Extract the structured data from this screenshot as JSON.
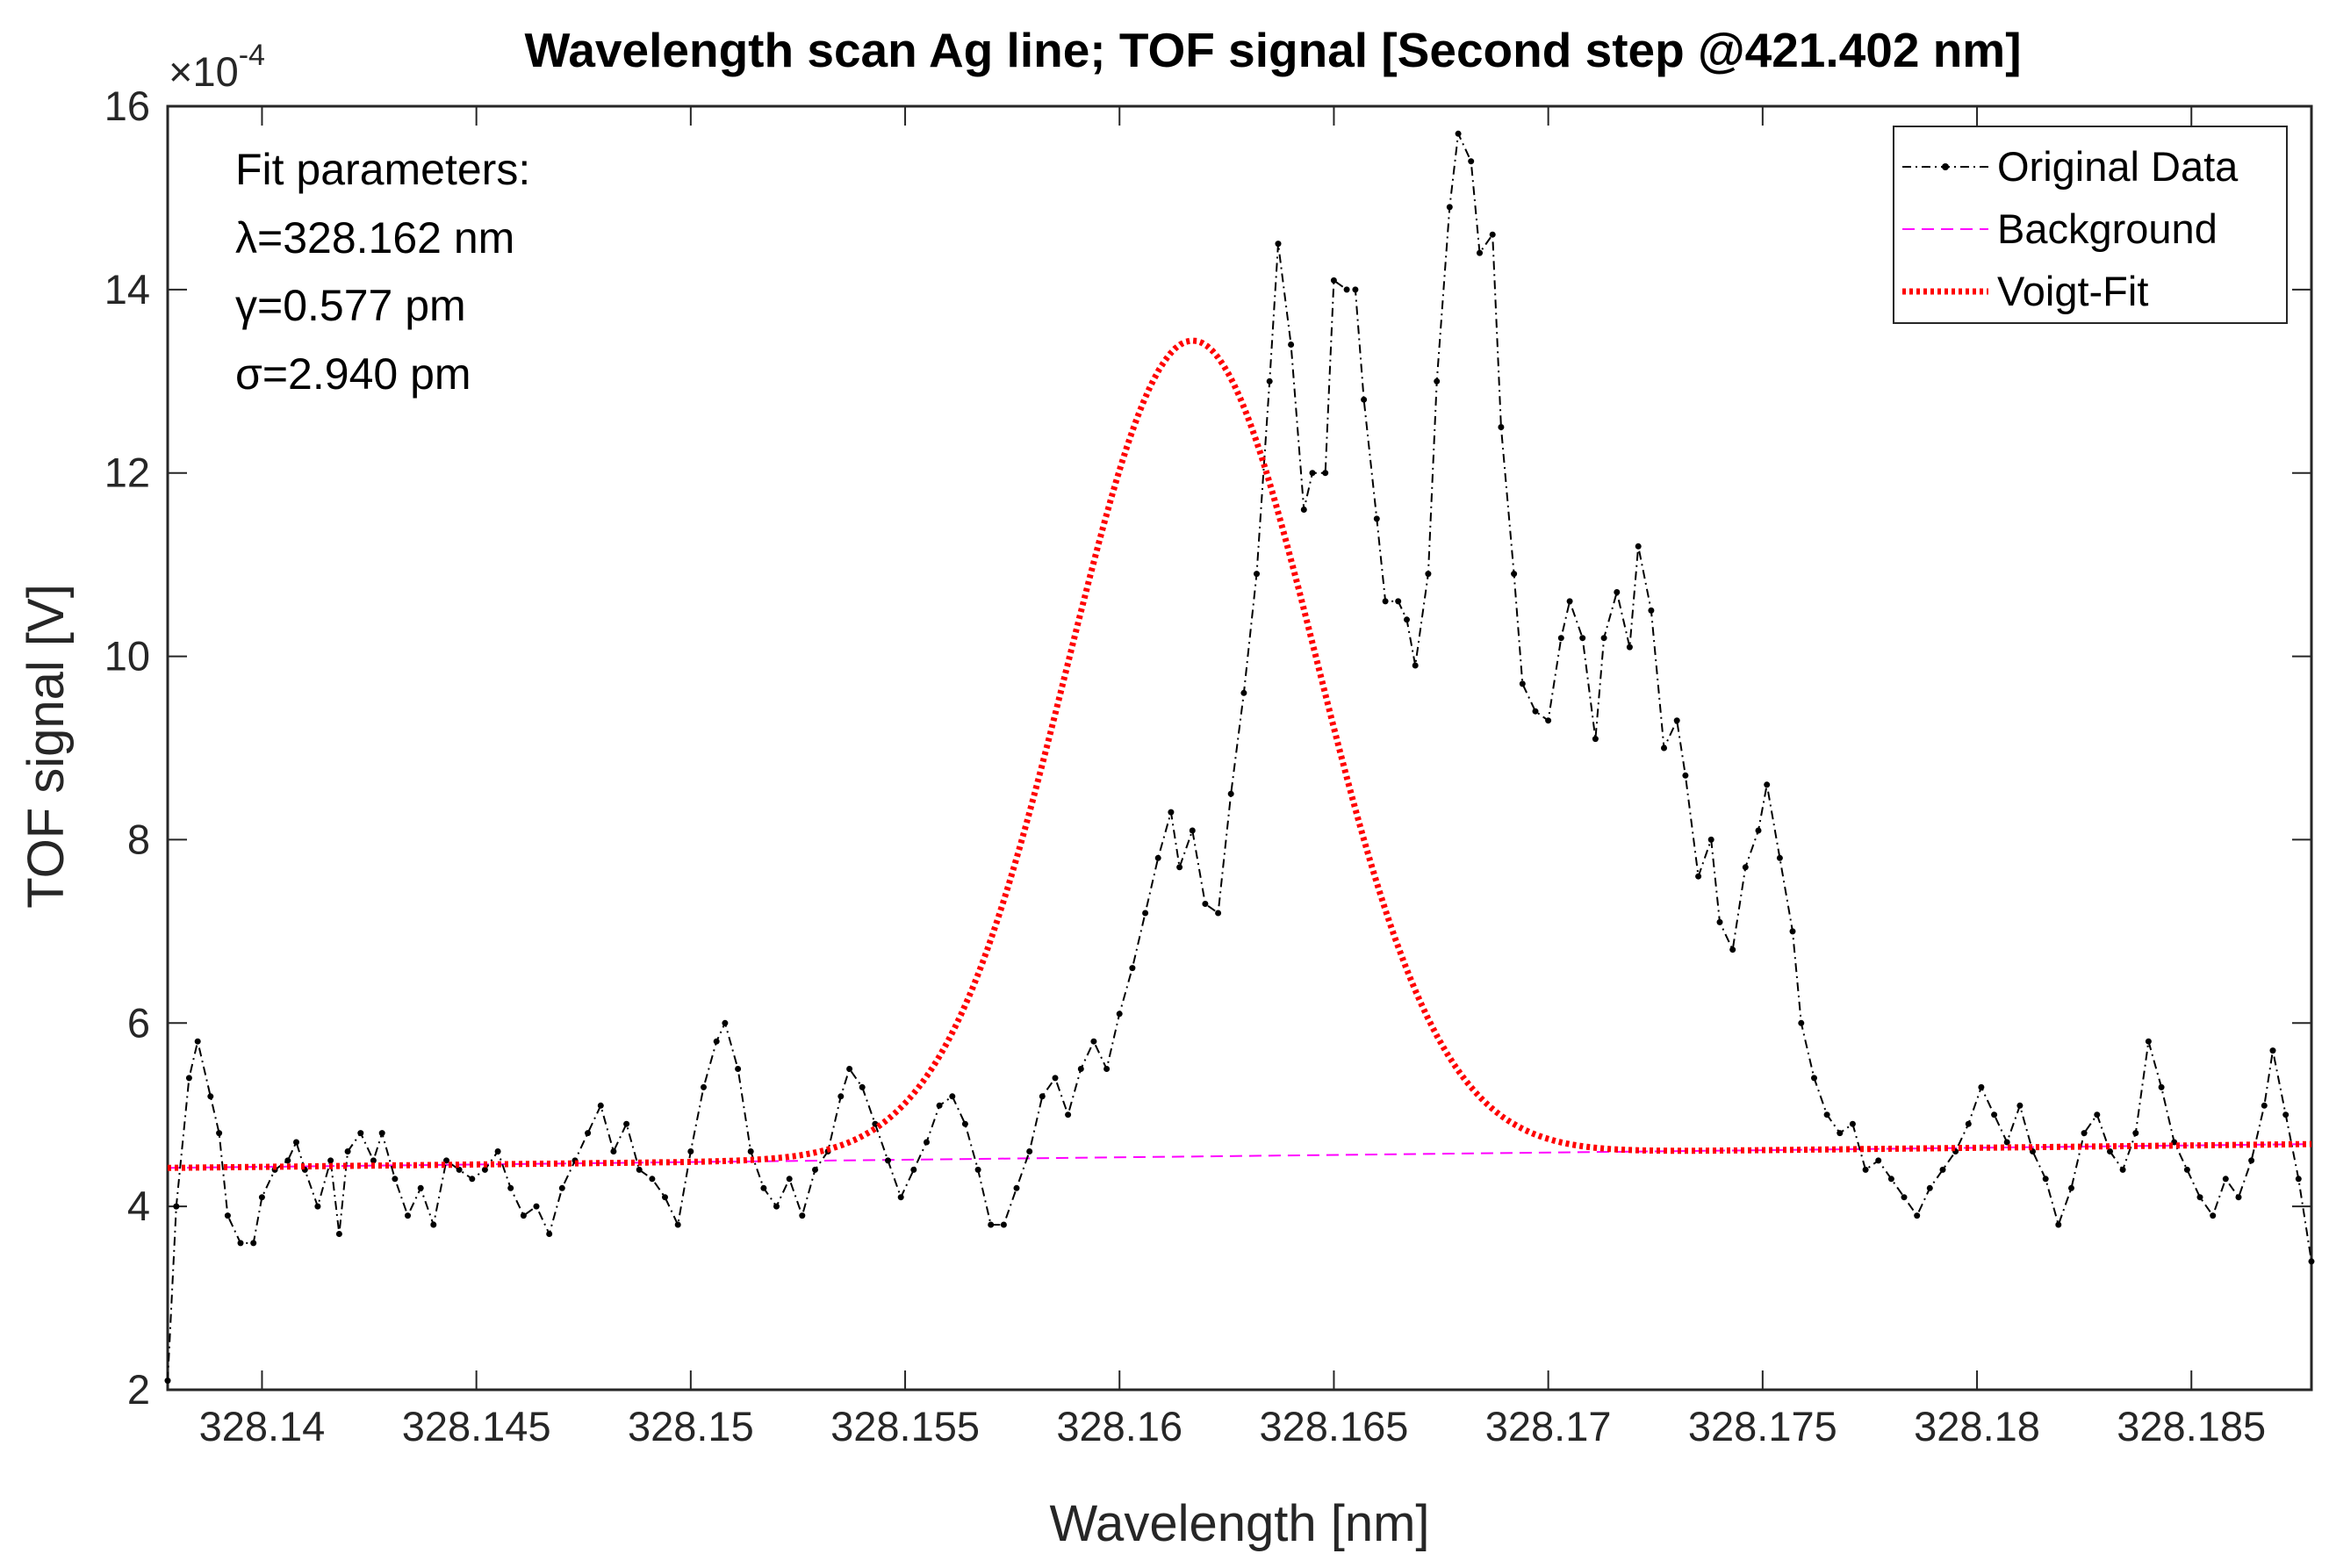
{
  "chart_data": {
    "type": "line",
    "title": "Wavelength scan Ag line; TOF signal [Second step @421.402 nm]",
    "xlabel": "Wavelength [nm]",
    "ylabel": "TOF signal [V]",
    "y_exponent_prefix": "×10",
    "y_exponent_power": "-4",
    "xlim": [
      328.1378,
      328.1878
    ],
    "ylim": [
      2,
      16
    ],
    "xticks": [
      328.14,
      328.145,
      328.15,
      328.155,
      328.16,
      328.165,
      328.17,
      328.175,
      328.18,
      328.185
    ],
    "xtick_labels": [
      "328.14",
      "328.145",
      "328.15",
      "328.155",
      "328.16",
      "328.165",
      "328.17",
      "328.175",
      "328.18",
      "328.185"
    ],
    "yticks": [
      2,
      4,
      6,
      8,
      10,
      12,
      14,
      16
    ],
    "ytick_labels": [
      "2",
      "4",
      "6",
      "8",
      "10",
      "12",
      "14",
      "16"
    ],
    "grid": false,
    "legend_position": "top-right",
    "annotation": {
      "heading": "Fit parameters:",
      "lambda": "λ=328.162 nm",
      "gamma": "γ=0.577 pm",
      "sigma": "σ=2.940 pm"
    },
    "series": [
      {
        "name": "Original Data",
        "style": "dash-dot with point markers",
        "color": "#000000",
        "points": [
          [
            328.1378,
            2.1
          ],
          [
            328.138,
            4.0
          ],
          [
            328.1383,
            5.4
          ],
          [
            328.1385,
            5.8
          ],
          [
            328.1388,
            5.2
          ],
          [
            328.139,
            4.8
          ],
          [
            328.1392,
            3.9
          ],
          [
            328.1395,
            3.6
          ],
          [
            328.1398,
            3.6
          ],
          [
            328.14,
            4.1
          ],
          [
            328.1403,
            4.4
          ],
          [
            328.1406,
            4.5
          ],
          [
            328.1408,
            4.7
          ],
          [
            328.141,
            4.4
          ],
          [
            328.1413,
            4.0
          ],
          [
            328.1416,
            4.5
          ],
          [
            328.1418,
            3.7
          ],
          [
            328.142,
            4.6
          ],
          [
            328.1423,
            4.8
          ],
          [
            328.1426,
            4.5
          ],
          [
            328.1428,
            4.8
          ],
          [
            328.1431,
            4.3
          ],
          [
            328.1434,
            3.9
          ],
          [
            328.1437,
            4.2
          ],
          [
            328.144,
            3.8
          ],
          [
            328.1443,
            4.5
          ],
          [
            328.1446,
            4.4
          ],
          [
            328.1449,
            4.3
          ],
          [
            328.1452,
            4.4
          ],
          [
            328.1455,
            4.6
          ],
          [
            328.1458,
            4.2
          ],
          [
            328.1461,
            3.9
          ],
          [
            328.1464,
            4.0
          ],
          [
            328.1467,
            3.7
          ],
          [
            328.147,
            4.2
          ],
          [
            328.1473,
            4.5
          ],
          [
            328.1476,
            4.8
          ],
          [
            328.1479,
            5.1
          ],
          [
            328.1482,
            4.6
          ],
          [
            328.1485,
            4.9
          ],
          [
            328.1488,
            4.4
          ],
          [
            328.1491,
            4.3
          ],
          [
            328.1494,
            4.1
          ],
          [
            328.1497,
            3.8
          ],
          [
            328.15,
            4.6
          ],
          [
            328.1503,
            5.3
          ],
          [
            328.1506,
            5.8
          ],
          [
            328.1508,
            6.0
          ],
          [
            328.1511,
            5.5
          ],
          [
            328.1514,
            4.6
          ],
          [
            328.1517,
            4.2
          ],
          [
            328.152,
            4.0
          ],
          [
            328.1523,
            4.3
          ],
          [
            328.1526,
            3.9
          ],
          [
            328.1529,
            4.4
          ],
          [
            328.1532,
            4.6
          ],
          [
            328.1535,
            5.2
          ],
          [
            328.1537,
            5.5
          ],
          [
            328.154,
            5.3
          ],
          [
            328.1543,
            4.9
          ],
          [
            328.1546,
            4.5
          ],
          [
            328.1549,
            4.1
          ],
          [
            328.1552,
            4.4
          ],
          [
            328.1555,
            4.7
          ],
          [
            328.1558,
            5.1
          ],
          [
            328.1561,
            5.2
          ],
          [
            328.1564,
            4.9
          ],
          [
            328.1567,
            4.4
          ],
          [
            328.157,
            3.8
          ],
          [
            328.1573,
            3.8
          ],
          [
            328.1576,
            4.2
          ],
          [
            328.1579,
            4.6
          ],
          [
            328.1582,
            5.2
          ],
          [
            328.1585,
            5.4
          ],
          [
            328.1588,
            5.0
          ],
          [
            328.1591,
            5.5
          ],
          [
            328.1594,
            5.8
          ],
          [
            328.1597,
            5.5
          ],
          [
            328.16,
            6.1
          ],
          [
            328.1603,
            6.6
          ],
          [
            328.1606,
            7.2
          ],
          [
            328.1609,
            7.8
          ],
          [
            328.1612,
            8.3
          ],
          [
            328.1614,
            7.7
          ],
          [
            328.1617,
            8.1
          ],
          [
            328.162,
            7.3
          ],
          [
            328.1623,
            7.2
          ],
          [
            328.1626,
            8.5
          ],
          [
            328.1629,
            9.6
          ],
          [
            328.1632,
            10.9
          ],
          [
            328.1635,
            13.0
          ],
          [
            328.1637,
            14.5
          ],
          [
            328.164,
            13.4
          ],
          [
            328.1643,
            11.6
          ],
          [
            328.1645,
            12.0
          ],
          [
            328.1648,
            12.0
          ],
          [
            328.165,
            14.1
          ],
          [
            328.1653,
            14.0
          ],
          [
            328.1655,
            14.0
          ],
          [
            328.1657,
            12.8
          ],
          [
            328.166,
            11.5
          ],
          [
            328.1662,
            10.6
          ],
          [
            328.1665,
            10.6
          ],
          [
            328.1667,
            10.4
          ],
          [
            328.1669,
            9.9
          ],
          [
            328.1672,
            10.9
          ],
          [
            328.1674,
            13.0
          ],
          [
            328.1677,
            14.9
          ],
          [
            328.1679,
            15.7
          ],
          [
            328.1682,
            15.4
          ],
          [
            328.1684,
            14.4
          ],
          [
            328.1687,
            14.6
          ],
          [
            328.1689,
            12.5
          ],
          [
            328.1692,
            10.9
          ],
          [
            328.1694,
            9.7
          ],
          [
            328.1697,
            9.4
          ],
          [
            328.17,
            9.3
          ],
          [
            328.1703,
            10.2
          ],
          [
            328.1705,
            10.6
          ],
          [
            328.1708,
            10.2
          ],
          [
            328.1711,
            9.1
          ],
          [
            328.1713,
            10.2
          ],
          [
            328.1716,
            10.7
          ],
          [
            328.1719,
            10.1
          ],
          [
            328.1721,
            11.2
          ],
          [
            328.1724,
            10.5
          ],
          [
            328.1727,
            9.0
          ],
          [
            328.173,
            9.3
          ],
          [
            328.1732,
            8.7
          ],
          [
            328.1735,
            7.6
          ],
          [
            328.1738,
            8.0
          ],
          [
            328.174,
            7.1
          ],
          [
            328.1743,
            6.8
          ],
          [
            328.1746,
            7.7
          ],
          [
            328.1749,
            8.1
          ],
          [
            328.1751,
            8.6
          ],
          [
            328.1754,
            7.8
          ],
          [
            328.1757,
            7.0
          ],
          [
            328.1759,
            6.0
          ],
          [
            328.1762,
            5.4
          ],
          [
            328.1765,
            5.0
          ],
          [
            328.1768,
            4.8
          ],
          [
            328.1771,
            4.9
          ],
          [
            328.1774,
            4.4
          ],
          [
            328.1777,
            4.5
          ],
          [
            328.178,
            4.3
          ],
          [
            328.1783,
            4.1
          ],
          [
            328.1786,
            3.9
          ],
          [
            328.1789,
            4.2
          ],
          [
            328.1792,
            4.4
          ],
          [
            328.1795,
            4.6
          ],
          [
            328.1798,
            4.9
          ],
          [
            328.1801,
            5.3
          ],
          [
            328.1804,
            5.0
          ],
          [
            328.1807,
            4.7
          ],
          [
            328.181,
            5.1
          ],
          [
            328.1813,
            4.6
          ],
          [
            328.1816,
            4.3
          ],
          [
            328.1819,
            3.8
          ],
          [
            328.1822,
            4.2
          ],
          [
            328.1825,
            4.8
          ],
          [
            328.1828,
            5.0
          ],
          [
            328.1831,
            4.6
          ],
          [
            328.1834,
            4.4
          ],
          [
            328.1837,
            4.8
          ],
          [
            328.184,
            5.8
          ],
          [
            328.1843,
            5.3
          ],
          [
            328.1846,
            4.7
          ],
          [
            328.1849,
            4.4
          ],
          [
            328.1852,
            4.1
          ],
          [
            328.1855,
            3.9
          ],
          [
            328.1858,
            4.3
          ],
          [
            328.1861,
            4.1
          ],
          [
            328.1864,
            4.5
          ],
          [
            328.1867,
            5.1
          ],
          [
            328.1869,
            5.7
          ],
          [
            328.1872,
            5.0
          ],
          [
            328.1875,
            4.3
          ],
          [
            328.1878,
            3.4
          ]
        ]
      },
      {
        "name": "Background",
        "style": "dashed",
        "color": "#ff00ff",
        "points": [
          [
            328.1378,
            4.42
          ],
          [
            328.1878,
            4.68
          ]
        ]
      },
      {
        "name": "Voigt-Fit",
        "style": "dotted",
        "color": "#ff0000",
        "model": "Gaussian-core peak on linear background",
        "center": 328.1617,
        "amplitude": 8.9,
        "sigma": 0.0029
      }
    ]
  }
}
